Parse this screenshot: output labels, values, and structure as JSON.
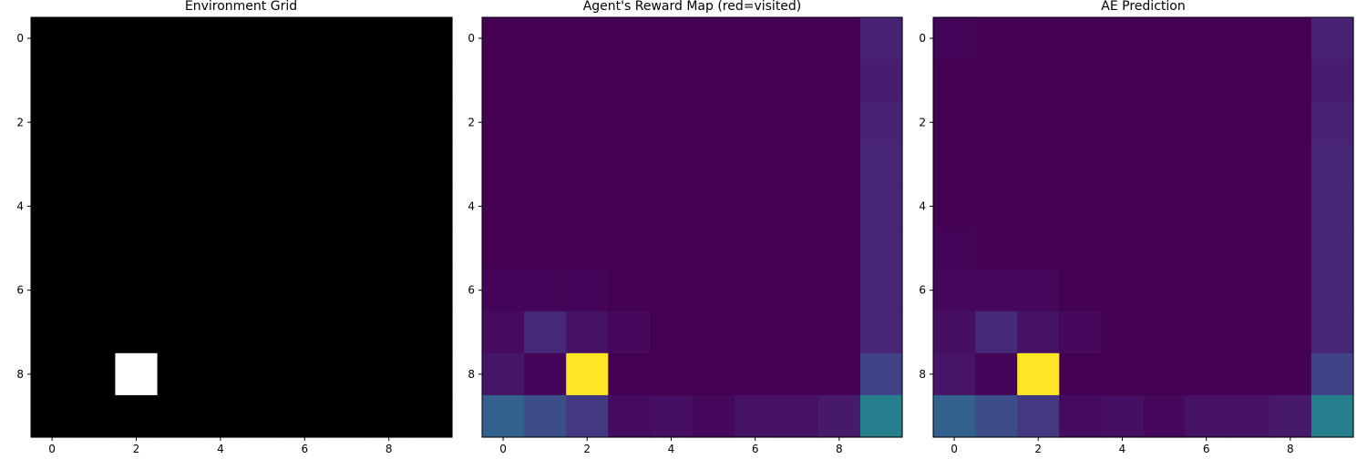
{
  "figure": {
    "panels": [
      {
        "title": "Environment Grid"
      },
      {
        "title": "Agent's Reward Map (red=visited)"
      },
      {
        "title": "AE Prediction"
      }
    ]
  },
  "chart_data": [
    {
      "type": "heatmap",
      "title": "Environment Grid",
      "xlabel": "",
      "ylabel": "",
      "colormap": "gray",
      "x": [
        0,
        1,
        2,
        3,
        4,
        5,
        6,
        7,
        8,
        9
      ],
      "y": [
        0,
        1,
        2,
        3,
        4,
        5,
        6,
        7,
        8,
        9
      ],
      "xticks": [
        0,
        2,
        4,
        6,
        8
      ],
      "yticks": [
        0,
        2,
        4,
        6,
        8
      ],
      "xlim": [
        -0.5,
        9.5
      ],
      "ylim": [
        9.5,
        -0.5
      ],
      "vmin": 0,
      "vmax": 1,
      "grid": false,
      "values": [
        [
          0,
          0,
          0,
          0,
          0,
          0,
          0,
          0,
          0,
          0
        ],
        [
          0,
          0,
          0,
          0,
          0,
          0,
          0,
          0,
          0,
          0
        ],
        [
          0,
          0,
          0,
          0,
          0,
          0,
          0,
          0,
          0,
          0
        ],
        [
          0,
          0,
          0,
          0,
          0,
          0,
          0,
          0,
          0,
          0
        ],
        [
          0,
          0,
          0,
          0,
          0,
          0,
          0,
          0,
          0,
          0
        ],
        [
          0,
          0,
          0,
          0,
          0,
          0,
          0,
          0,
          0,
          0
        ],
        [
          0,
          0,
          0,
          0,
          0,
          0,
          0,
          0,
          0,
          0
        ],
        [
          0,
          0,
          0,
          0,
          0,
          0,
          0,
          0,
          0,
          0
        ],
        [
          0,
          0,
          1,
          0,
          0,
          0,
          0,
          0,
          0,
          0
        ],
        [
          0,
          0,
          0,
          0,
          0,
          0,
          0,
          0,
          0,
          0
        ]
      ]
    },
    {
      "type": "heatmap",
      "title": "Agent's Reward Map (red=visited)",
      "xlabel": "",
      "ylabel": "",
      "colormap": "viridis",
      "x": [
        0,
        1,
        2,
        3,
        4,
        5,
        6,
        7,
        8,
        9
      ],
      "y": [
        0,
        1,
        2,
        3,
        4,
        5,
        6,
        7,
        8,
        9
      ],
      "xticks": [
        0,
        2,
        4,
        6,
        8
      ],
      "yticks": [
        0,
        2,
        4,
        6,
        8
      ],
      "xlim": [
        -0.5,
        9.5
      ],
      "ylim": [
        9.5,
        -0.5
      ],
      "vmin": 0,
      "vmax": 1,
      "grid": false,
      "values": [
        [
          0.0,
          0.0,
          0.0,
          0.0,
          0.0,
          0.0,
          0.0,
          0.0,
          0.0,
          0.1
        ],
        [
          0.0,
          0.0,
          0.0,
          0.0,
          0.0,
          0.0,
          0.0,
          0.0,
          0.0,
          0.08
        ],
        [
          0.0,
          0.0,
          0.0,
          0.0,
          0.0,
          0.0,
          0.0,
          0.0,
          0.0,
          0.1
        ],
        [
          0.0,
          0.0,
          0.0,
          0.0,
          0.0,
          0.0,
          0.0,
          0.0,
          0.0,
          0.11
        ],
        [
          0.0,
          0.0,
          0.0,
          0.0,
          0.0,
          0.0,
          0.0,
          0.0,
          0.0,
          0.11
        ],
        [
          0.0,
          0.0,
          0.0,
          0.0,
          0.0,
          0.0,
          0.0,
          0.0,
          0.0,
          0.11
        ],
        [
          0.01,
          0.01,
          0.01,
          0.0,
          0.0,
          0.0,
          0.0,
          0.0,
          0.0,
          0.11
        ],
        [
          0.03,
          0.12,
          0.05,
          0.02,
          0.0,
          0.0,
          0.0,
          0.0,
          0.0,
          0.11
        ],
        [
          0.06,
          0.01,
          1.0,
          0.0,
          0.0,
          0.0,
          0.0,
          0.0,
          0.0,
          0.2
        ],
        [
          0.31,
          0.24,
          0.17,
          0.03,
          0.04,
          0.02,
          0.05,
          0.05,
          0.07,
          0.43
        ]
      ]
    },
    {
      "type": "heatmap",
      "title": "AE Prediction",
      "xlabel": "",
      "ylabel": "",
      "colormap": "viridis",
      "x": [
        0,
        1,
        2,
        3,
        4,
        5,
        6,
        7,
        8,
        9
      ],
      "y": [
        0,
        1,
        2,
        3,
        4,
        5,
        6,
        7,
        8,
        9
      ],
      "xticks": [
        0,
        2,
        4,
        6,
        8
      ],
      "yticks": [
        0,
        2,
        4,
        6,
        8
      ],
      "xlim": [
        -0.5,
        9.5
      ],
      "ylim": [
        9.5,
        -0.5
      ],
      "vmin": 0,
      "vmax": 1,
      "grid": false,
      "values": [
        [
          0.01,
          0.0,
          0.0,
          0.0,
          0.0,
          0.0,
          0.0,
          0.0,
          0.0,
          0.1
        ],
        [
          0.0,
          0.0,
          0.0,
          0.0,
          0.0,
          0.0,
          0.0,
          0.0,
          0.0,
          0.08
        ],
        [
          0.0,
          0.0,
          0.0,
          0.0,
          0.0,
          0.0,
          0.0,
          0.0,
          0.0,
          0.1
        ],
        [
          0.0,
          0.0,
          0.0,
          0.0,
          0.0,
          0.0,
          0.0,
          0.0,
          0.0,
          0.11
        ],
        [
          0.0,
          0.0,
          0.0,
          0.0,
          0.0,
          0.0,
          0.0,
          0.0,
          0.0,
          0.11
        ],
        [
          0.01,
          0.0,
          0.0,
          0.0,
          0.0,
          0.0,
          0.0,
          0.0,
          0.0,
          0.11
        ],
        [
          0.02,
          0.02,
          0.02,
          0.0,
          0.0,
          0.0,
          0.0,
          0.0,
          0.0,
          0.11
        ],
        [
          0.04,
          0.12,
          0.05,
          0.02,
          0.0,
          0.0,
          0.0,
          0.0,
          0.0,
          0.11
        ],
        [
          0.06,
          0.01,
          1.0,
          0.0,
          0.0,
          0.0,
          0.0,
          0.0,
          0.0,
          0.2
        ],
        [
          0.31,
          0.24,
          0.17,
          0.03,
          0.04,
          0.02,
          0.05,
          0.05,
          0.07,
          0.43
        ]
      ]
    }
  ]
}
